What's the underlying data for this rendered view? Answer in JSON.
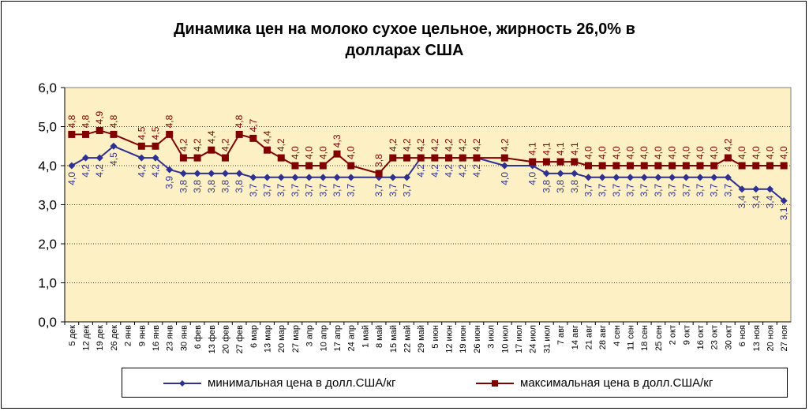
{
  "chart_data": {
    "type": "line",
    "title_lines": [
      "Динамика цен на молоко сухое цельное, жирность 26,0%  в",
      "долларах США"
    ],
    "xlabel": "",
    "ylabel": "",
    "ylim": [
      0,
      6
    ],
    "y_ticks": [
      "0,0",
      "1,0",
      "2,0",
      "3,0",
      "4,0",
      "5,0",
      "6,0"
    ],
    "grid": true,
    "legend_position": "bottom",
    "plot_background": "#fdf0c4",
    "categories": [
      "5 дек",
      "12 дек",
      "19 дек",
      "26 дек",
      "2 янв",
      "9 янв",
      "16 янв",
      "23 янв",
      "30 янв",
      "6 фев",
      "13 фев",
      "20 фев",
      "27 фев",
      "6 мар",
      "13 мар",
      "20 мар",
      "27 мар",
      "3 апр",
      "10 апр",
      "17 апр",
      "24 апр",
      "1 май",
      "8 май",
      "15 май",
      "22 май",
      "29 май",
      "5 июн",
      "12 июн",
      "19 июн",
      "26 июн",
      "3 июл",
      "10 июл",
      "17 июл",
      "24 июл",
      "31 июл",
      "7 авг",
      "14 авг",
      "21 авг",
      "28 авг",
      "4 сен",
      "11 сен",
      "18 сен",
      "25 сен",
      "2 окт",
      "9 окт",
      "16 окт",
      "23 окт",
      "30 окт",
      "6 ноя",
      "13 ноя",
      "20 ноя",
      "27 ноя"
    ],
    "series": [
      {
        "name": "минимальная цена в долл.США/кг",
        "color": "#2e3192",
        "marker": "diamond",
        "label_position": "below",
        "values": [
          4.0,
          4.2,
          4.2,
          4.5,
          null,
          4.2,
          4.2,
          3.9,
          3.8,
          3.8,
          3.8,
          3.8,
          3.8,
          3.7,
          3.7,
          3.7,
          3.7,
          3.7,
          3.7,
          3.7,
          3.7,
          null,
          3.7,
          3.7,
          3.7,
          4.2,
          4.2,
          4.2,
          4.2,
          4.2,
          null,
          4.0,
          null,
          4.0,
          3.8,
          3.8,
          3.8,
          3.7,
          3.7,
          3.7,
          3.7,
          3.7,
          3.7,
          3.7,
          3.7,
          3.7,
          3.7,
          3.7,
          3.4,
          3.4,
          3.4,
          3.1
        ]
      },
      {
        "name": "максимальная цена в долл.США/кг",
        "color": "#800000",
        "marker": "square",
        "label_position": "above",
        "values": [
          4.8,
          4.8,
          4.9,
          4.8,
          null,
          4.5,
          4.5,
          4.8,
          4.2,
          4.2,
          4.4,
          4.2,
          4.8,
          4.7,
          4.4,
          4.2,
          4.0,
          4.0,
          4.0,
          4.3,
          4.0,
          null,
          3.8,
          4.2,
          4.2,
          4.2,
          4.2,
          4.2,
          4.2,
          4.2,
          null,
          4.2,
          null,
          4.1,
          4.1,
          4.1,
          4.1,
          4.0,
          4.0,
          4.0,
          4.0,
          4.0,
          4.0,
          4.0,
          4.0,
          4.0,
          4.0,
          4.2,
          4.0,
          4.0,
          4.0,
          4.0
        ]
      }
    ]
  }
}
